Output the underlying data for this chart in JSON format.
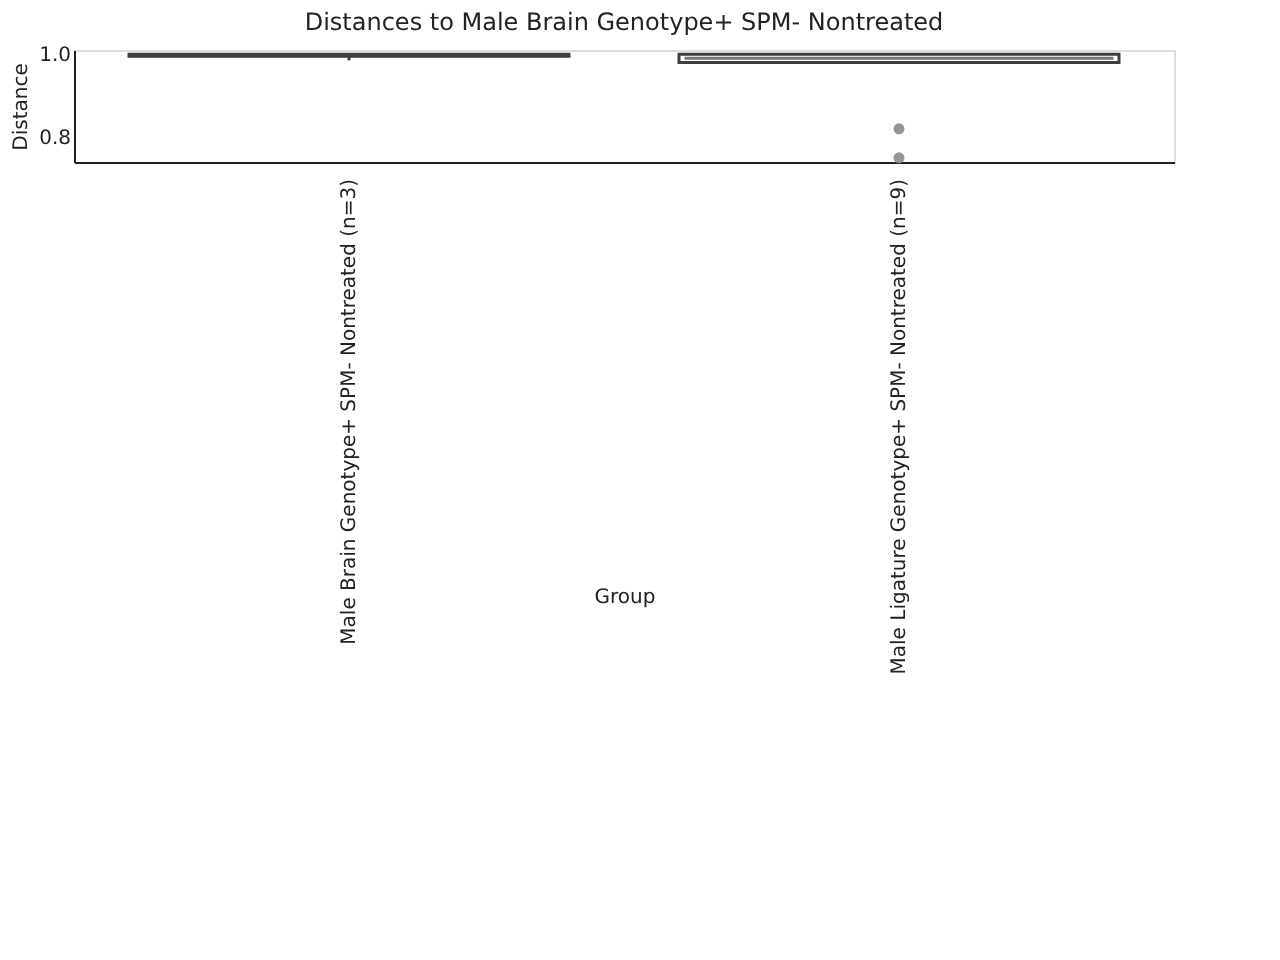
{
  "chart_data": {
    "type": "box",
    "title": "Distances to Male Brain Genotype+ SPM- Nontreated",
    "xlabel": "Group",
    "ylabel": "Distance",
    "categories": [
      "Male Brain Genotype+ SPM- Nontreated (n=3)",
      "Male Ligature Genotype+ SPM- Nontreated (n=9)"
    ],
    "boxes": [
      {
        "low": 0.985,
        "q1": 0.995,
        "median": 0.998,
        "q3": 1.0,
        "high": 1.0
      },
      {
        "low": 0.98,
        "q1": 0.98,
        "median": 0.99,
        "q3": 1.0,
        "high": 1.0,
        "outliers": [
          0.82,
          0.75
        ]
      }
    ],
    "ylim": [
      0.74,
      1.01
    ],
    "yticks": [
      0.8,
      {
        "value": 1.0,
        "label": "1.0"
      }
    ],
    "grid": false
  }
}
